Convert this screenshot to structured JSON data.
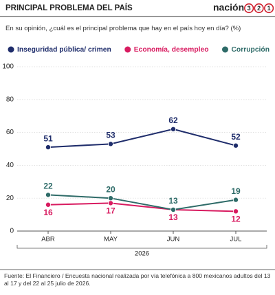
{
  "chart_data": {
    "type": "line",
    "title": "PRINCIPAL PROBLEMA DEL PAÍS",
    "subtitle": "En su opinión, ¿cuál es el principal problema que hay en el país hoy en día?  (%)",
    "categories": [
      "ABR",
      "MAY",
      "JUN",
      "JUL"
    ],
    "xlabel": "2026",
    "series": [
      {
        "name": "Inseguridad pública/ crimen",
        "color": "#1f2d6b",
        "values": [
          51,
          53,
          62,
          52
        ],
        "label_position": "above"
      },
      {
        "name": "Economía, desempleo",
        "color": "#d81b60",
        "values": [
          16,
          17,
          13,
          12
        ],
        "label_position": "below"
      },
      {
        "name": "Corrupción",
        "color": "#2e6b68",
        "values": [
          22,
          20,
          13,
          19
        ],
        "label_position": "above"
      }
    ],
    "ylim": [
      0,
      100
    ],
    "yticks": [
      0,
      20,
      40,
      60,
      80,
      100
    ],
    "grid": true,
    "source": "Fuente: El Financiero / Encuesta nacional realizada por vía telefónica a 800 mexicanos adultos del 13 al 17 y del 22 al 25 julio de 2026."
  },
  "logo": {
    "name": "nación",
    "digits": [
      "3",
      "2",
      "1"
    ],
    "digit_color": "#d0202e"
  }
}
